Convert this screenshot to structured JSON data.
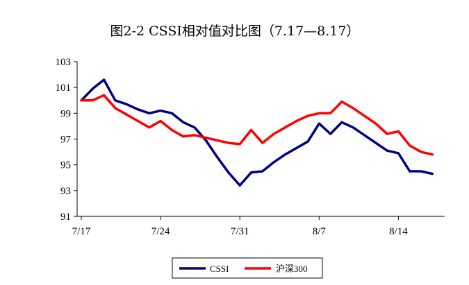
{
  "chart_data": {
    "type": "line",
    "title": "图2-2 CSSI相对值对比图（7.17—8.17）",
    "xlabel": "",
    "ylabel": "",
    "ylim": [
      91,
      103
    ],
    "yticks": [
      91,
      93,
      95,
      97,
      99,
      101,
      103
    ],
    "xticks": [
      {
        "index": 0,
        "label": "7/17"
      },
      {
        "index": 7,
        "label": "7/24"
      },
      {
        "index": 14,
        "label": "7/31"
      },
      {
        "index": 21,
        "label": "8/7"
      },
      {
        "index": 28,
        "label": "8/14"
      }
    ],
    "grid": false,
    "legend_position": "bottom",
    "x": [
      "7/17",
      "7/18",
      "7/19",
      "7/20",
      "7/21",
      "7/22",
      "7/23",
      "7/24",
      "7/25",
      "7/26",
      "7/27",
      "7/28",
      "7/29",
      "7/30",
      "7/31",
      "8/1",
      "8/2",
      "8/3",
      "8/4",
      "8/5",
      "8/6",
      "8/7",
      "8/8",
      "8/9",
      "8/10",
      "8/11",
      "8/12",
      "8/13",
      "8/14",
      "8/15",
      "8/16",
      "8/17"
    ],
    "series": [
      {
        "name": "CSSI",
        "color": "#000080",
        "values": [
          100.0,
          100.9,
          101.6,
          100.0,
          99.7,
          99.3,
          99.0,
          99.2,
          99.0,
          98.3,
          97.9,
          96.9,
          95.6,
          94.4,
          93.4,
          94.4,
          94.5,
          95.2,
          95.8,
          96.3,
          96.8,
          98.2,
          97.4,
          98.3,
          97.9,
          97.3,
          96.7,
          96.1,
          95.9,
          94.5,
          94.5,
          94.3
        ]
      },
      {
        "name": "沪深300",
        "color": "#ff0000",
        "values": [
          100.0,
          100.0,
          100.4,
          99.4,
          98.9,
          98.4,
          97.9,
          98.4,
          97.7,
          97.2,
          97.3,
          97.1,
          96.9,
          96.7,
          96.6,
          97.7,
          96.7,
          97.4,
          97.9,
          98.4,
          98.8,
          99.0,
          99.0,
          99.9,
          99.4,
          98.8,
          98.2,
          97.4,
          97.6,
          96.5,
          96.0,
          95.8
        ]
      }
    ]
  }
}
